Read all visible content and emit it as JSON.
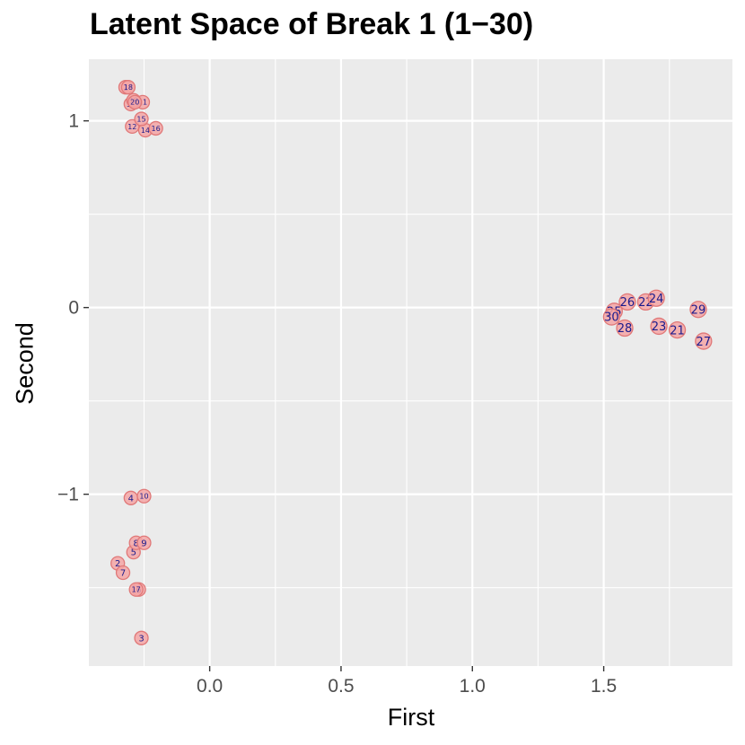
{
  "chart_data": {
    "type": "scatter",
    "title": "Latent Space of Break 1 (1−30)",
    "xlabel": "First",
    "ylabel": "Second",
    "xlim": [
      -0.46,
      1.99
    ],
    "ylim": [
      -1.92,
      1.33
    ],
    "x_ticks": [
      {
        "value": 0.0,
        "label": "0.0"
      },
      {
        "value": 0.5,
        "label": "0.5"
      },
      {
        "value": 1.0,
        "label": "1.0"
      },
      {
        "value": 1.5,
        "label": "1.5"
      }
    ],
    "y_ticks": [
      {
        "value": 1,
        "label": "1"
      },
      {
        "value": 0,
        "label": "0"
      },
      {
        "value": -1,
        "label": "−1"
      }
    ],
    "grid": true,
    "colors": {
      "panel_background": "#ebebeb",
      "gridline": "#ffffff",
      "point_fill": "#f4a6a6",
      "point_outline": "#e07878",
      "label_text": "#1a1a8c"
    },
    "points": [
      {
        "label": "1",
        "x": -0.32,
        "y": 1.18
      },
      {
        "label": "2",
        "x": -0.35,
        "y": -1.37
      },
      {
        "label": "3",
        "x": -0.26,
        "y": -1.77
      },
      {
        "label": "4",
        "x": -0.3,
        "y": -1.02
      },
      {
        "label": "5",
        "x": -0.29,
        "y": -1.31
      },
      {
        "label": "6",
        "x": -0.27,
        "y": -1.51
      },
      {
        "label": "7",
        "x": -0.33,
        "y": -1.42
      },
      {
        "label": "8",
        "x": -0.28,
        "y": -1.26
      },
      {
        "label": "9",
        "x": -0.25,
        "y": -1.26
      },
      {
        "label": "10",
        "x": -0.25,
        "y": -1.01
      },
      {
        "label": "11",
        "x": -0.255,
        "y": 1.1
      },
      {
        "label": "12",
        "x": -0.295,
        "y": 0.97
      },
      {
        "label": "13",
        "x": -0.3,
        "y": 1.09
      },
      {
        "label": "14",
        "x": -0.245,
        "y": 0.95
      },
      {
        "label": "15",
        "x": -0.26,
        "y": 1.01
      },
      {
        "label": "16",
        "x": -0.205,
        "y": 0.96
      },
      {
        "label": "17",
        "x": -0.28,
        "y": -1.51
      },
      {
        "label": "18",
        "x": -0.31,
        "y": 1.18
      },
      {
        "label": "19",
        "x": -0.29,
        "y": 1.11
      },
      {
        "label": "20",
        "x": -0.285,
        "y": 1.1
      },
      {
        "label": "21",
        "x": 1.78,
        "y": -0.12
      },
      {
        "label": "22",
        "x": 1.66,
        "y": 0.03
      },
      {
        "label": "23",
        "x": 1.71,
        "y": -0.1
      },
      {
        "label": "24",
        "x": 1.7,
        "y": 0.05
      },
      {
        "label": "25",
        "x": 1.54,
        "y": -0.02
      },
      {
        "label": "26",
        "x": 1.59,
        "y": 0.03
      },
      {
        "label": "27",
        "x": 1.88,
        "y": -0.18
      },
      {
        "label": "28",
        "x": 1.58,
        "y": -0.11
      },
      {
        "label": "29",
        "x": 1.86,
        "y": -0.01
      },
      {
        "label": "30",
        "x": 1.53,
        "y": -0.05
      }
    ]
  }
}
